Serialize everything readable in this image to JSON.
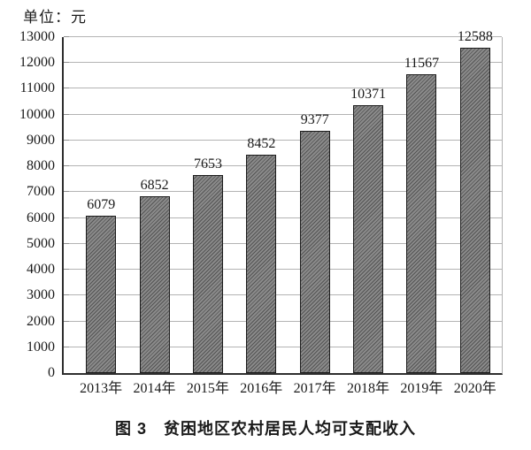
{
  "unit_label": "单位：元",
  "caption": "图 3　贫困地区农村居民人均可支配收入",
  "chart_data": {
    "type": "bar",
    "title": "图 3 贫困地区农村居民人均可支配收入",
    "unit_label": "单位：元",
    "categories": [
      "2013年",
      "2014年",
      "2015年",
      "2016年",
      "2017年",
      "2018年",
      "2019年",
      "2020年"
    ],
    "values": [
      6079,
      6852,
      7653,
      8452,
      9377,
      10371,
      11567,
      12588
    ],
    "xlabel": "",
    "ylabel": "元",
    "ylim": [
      0,
      13000
    ],
    "ytick_step": 1000,
    "grid": true,
    "legend": false,
    "colors": {
      "bar_fill": "#8a8a8a",
      "bar_hatch": "#2e2e2e",
      "bar_border": "#1c1c1c",
      "gridline": "#b3b3b3",
      "axis": "#2e2e2e",
      "text": "#1a1a1a"
    }
  }
}
